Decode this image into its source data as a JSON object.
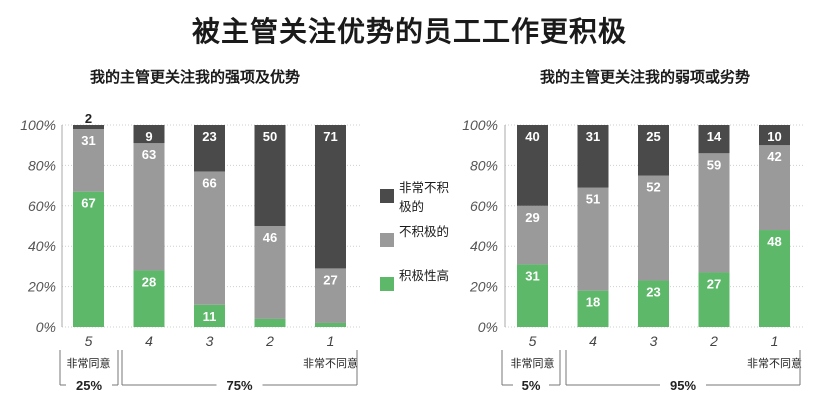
{
  "title": "被主管关注优势的员工工作更积极",
  "colors": {
    "dark": "#4a4a4a",
    "mid": "#9a9a9a",
    "green": "#5db86a"
  },
  "legend": [
    {
      "label": "非常不积极的",
      "color": "#4a4a4a"
    },
    {
      "label": "不积极的",
      "color": "#9a9a9a"
    },
    {
      "label": "积极性高",
      "color": "#5db86a"
    }
  ],
  "chart_data": [
    {
      "type": "bar",
      "stacked": true,
      "title": "我的主管更关注我的强项及优势",
      "categories": [
        "5",
        "4",
        "3",
        "2",
        "1"
      ],
      "yticks": [
        "0%",
        "20%",
        "40%",
        "60%",
        "80%",
        "100%"
      ],
      "ylim": [
        0,
        100
      ],
      "series": [
        {
          "name": "积极性高",
          "values": [
            67,
            28,
            11,
            4,
            2
          ]
        },
        {
          "name": "不积极的",
          "values": [
            31,
            63,
            66,
            46,
            27
          ]
        },
        {
          "name": "非常不积极的",
          "values": [
            2,
            9,
            23,
            50,
            71
          ]
        }
      ],
      "data_labels": {
        "积极性高": [
          "67",
          "28",
          "11",
          "",
          ""
        ],
        "不积极的": [
          "31",
          "63",
          "66",
          "46",
          "27"
        ],
        "非常不积极的": [
          "2",
          "9",
          "23",
          "50",
          "71"
        ]
      },
      "scale_left": "非常同意",
      "scale_right": "非常不同意",
      "group_left": "25%",
      "group_right": "75%"
    },
    {
      "type": "bar",
      "stacked": true,
      "title": "我的主管更关注我的弱项或劣势",
      "categories": [
        "5",
        "4",
        "3",
        "2",
        "1"
      ],
      "yticks": [
        "0%",
        "20%",
        "40%",
        "60%",
        "80%",
        "100%"
      ],
      "ylim": [
        0,
        100
      ],
      "series": [
        {
          "name": "积极性高",
          "values": [
            31,
            18,
            23,
            27,
            48
          ]
        },
        {
          "name": "不积极的",
          "values": [
            29,
            51,
            52,
            59,
            42
          ]
        },
        {
          "name": "非常不积极的",
          "values": [
            40,
            31,
            25,
            14,
            10
          ]
        }
      ],
      "data_labels": {
        "积极性高": [
          "31",
          "18",
          "23",
          "27",
          "48"
        ],
        "不积极的": [
          "29",
          "51",
          "52",
          "59",
          "42"
        ],
        "非常不积极的": [
          "40",
          "31",
          "25",
          "14",
          "10"
        ]
      },
      "scale_left": "非常同意",
      "scale_right": "非常不同意",
      "group_left": "5%",
      "group_right": "95%"
    }
  ]
}
